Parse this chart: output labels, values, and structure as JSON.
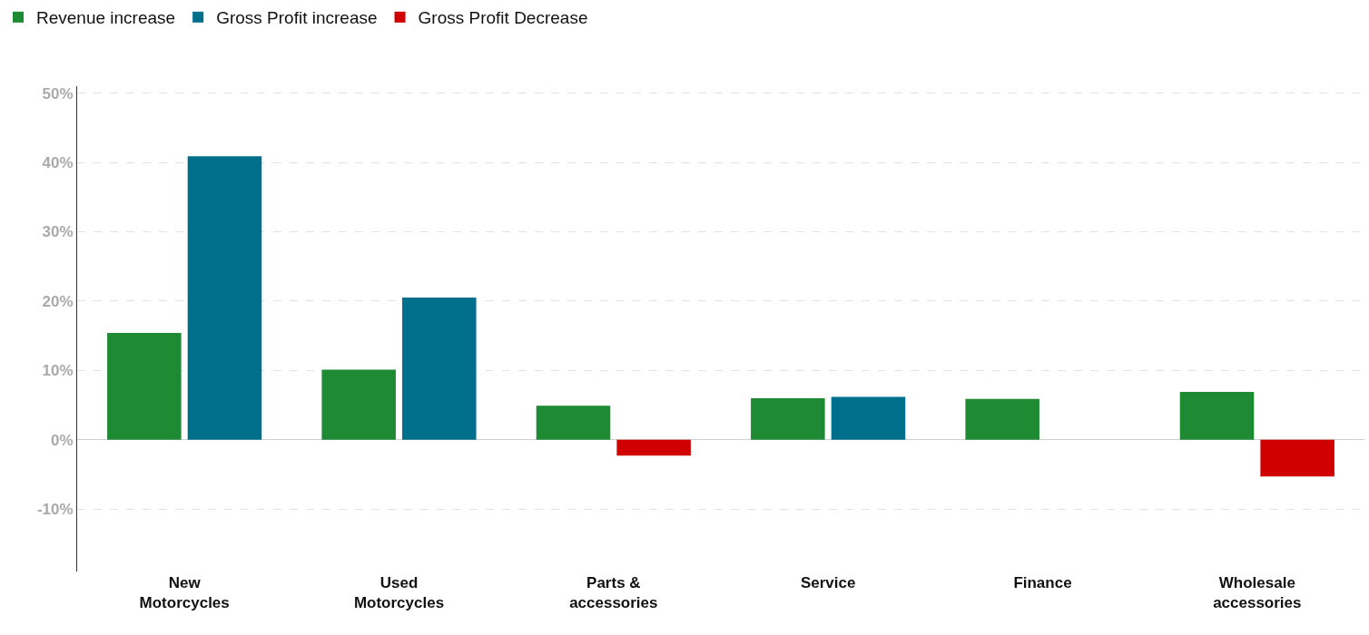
{
  "chart_data": {
    "type": "bar",
    "categories": [
      "New\nMotorcycles",
      "Used\nMotorcycles",
      "Parts &\naccessories",
      "Service",
      "Finance",
      "Wholesale\naccessories"
    ],
    "series": [
      {
        "name": "Revenue increase",
        "color": "#1e8a34",
        "values": [
          15.4,
          10.1,
          4.9,
          6.0,
          5.9,
          6.9
        ]
      },
      {
        "name": "Gross Profit increase",
        "color": "#006f8c",
        "values": [
          40.9,
          20.5,
          null,
          6.2,
          null,
          null
        ]
      },
      {
        "name": "Gross Profit Decrease",
        "color": "#d00000",
        "values": [
          null,
          null,
          -2.3,
          null,
          null,
          -5.3
        ]
      }
    ],
    "ylim": [
      -19,
      51
    ],
    "yticks": [
      {
        "value": -10,
        "label": "-10%"
      },
      {
        "value": 0,
        "label": "0%"
      },
      {
        "value": 10,
        "label": "10%"
      },
      {
        "value": 20,
        "label": "20%"
      },
      {
        "value": 30,
        "label": "30%"
      },
      {
        "value": 40,
        "label": "40%"
      },
      {
        "value": 50,
        "label": "50%"
      }
    ],
    "grid": "y",
    "legend": "top left"
  }
}
